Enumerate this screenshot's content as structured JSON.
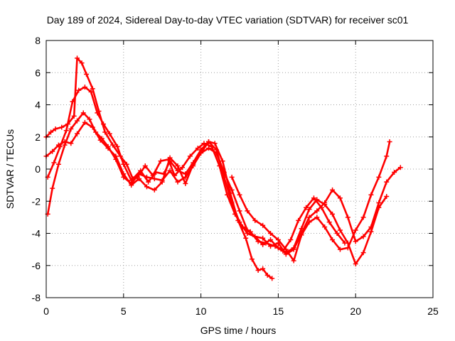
{
  "chart_data": {
    "type": "scatter",
    "title": "Day 189 of 2024, Sidereal Day-to-day VTEC variation (SDTVAR) for receiver sc01",
    "xlabel": "GPS time / hours",
    "ylabel": "SDTVAR / TECUs",
    "xlim": [
      0,
      25
    ],
    "ylim": [
      -8,
      8
    ],
    "xticks": [
      "0",
      "5",
      "10",
      "15",
      "20",
      "25"
    ],
    "yticks": [
      "8",
      "6",
      "4",
      "2",
      "0",
      "-2",
      "-4",
      "-6",
      "-8"
    ],
    "grid": true,
    "marker": "plus",
    "color": "#ff0000",
    "series": [
      {
        "x": [
          0.0,
          0.3,
          0.6,
          1.0,
          1.4,
          1.8,
          2.0,
          2.3,
          2.6,
          3.0,
          3.4,
          3.8,
          4.3,
          4.8,
          5.2,
          5.6,
          6.1,
          6.6,
          7.1,
          7.6,
          8.0,
          8.5,
          9.0,
          9.5,
          10.0,
          10.5,
          10.9,
          11.4,
          11.9,
          12.4,
          12.9,
          13.3,
          13.7,
          14.0,
          14.3,
          14.6
        ],
        "y": [
          2.0,
          2.3,
          2.5,
          2.6,
          2.8,
          3.3,
          6.9,
          6.6,
          5.9,
          5.0,
          3.6,
          2.3,
          1.5,
          0.8,
          0.3,
          -0.6,
          -0.1,
          -0.8,
          -0.2,
          -0.3,
          0.5,
          -0.1,
          -0.3,
          0.4,
          1.2,
          1.7,
          1.6,
          0.5,
          -1.5,
          -3.2,
          -4.3,
          -5.6,
          -6.3,
          -6.2,
          -6.6,
          -6.8
        ]
      },
      {
        "x": [
          0.1,
          0.5,
          0.9,
          1.3,
          1.7,
          2.1,
          2.5,
          2.9,
          3.3,
          3.7,
          4.1,
          4.6,
          5.0,
          5.5,
          5.9,
          6.4,
          6.9,
          7.4,
          7.9,
          8.3,
          8.8,
          9.3,
          9.8,
          10.2,
          10.7,
          11.2,
          11.7,
          12.2,
          12.7,
          13.2,
          13.7,
          14.2,
          14.8,
          15.3,
          15.8,
          16.3,
          16.8,
          17.3,
          17.8,
          18.3,
          18.8,
          19.3
        ],
        "y": [
          -0.5,
          0.4,
          1.4,
          2.4,
          4.2,
          4.9,
          5.1,
          4.8,
          3.5,
          2.8,
          2.2,
          1.4,
          0.3,
          -0.7,
          -0.5,
          0.2,
          -0.4,
          0.5,
          0.6,
          -0.4,
          0.1,
          0.8,
          1.3,
          1.6,
          1.4,
          0.2,
          -1.6,
          -2.8,
          -3.6,
          -3.9,
          -4.5,
          -4.6,
          -4.8,
          -5.1,
          -4.4,
          -3.2,
          -2.4,
          -1.8,
          -2.4,
          -3.3,
          -4.0,
          -4.6
        ]
      },
      {
        "x": [
          0.1,
          0.4,
          0.8,
          1.2,
          1.6,
          2.0,
          2.4,
          2.8,
          3.2,
          3.6,
          4.0,
          4.5,
          5.0,
          5.5,
          6.0,
          6.5,
          7.0,
          7.5,
          8.0,
          8.5,
          9.0,
          9.5,
          10.0,
          10.5,
          11.0,
          11.5,
          12.0,
          12.5,
          13.0,
          13.5,
          14.0,
          14.5,
          15.0,
          15.5,
          16.0,
          16.5,
          17.0,
          17.5,
          18.0,
          18.5,
          19.0,
          19.5,
          20.0,
          20.5,
          21.0,
          21.5,
          22.0
        ],
        "y": [
          -2.8,
          -1.2,
          0.3,
          1.5,
          2.5,
          3.0,
          3.5,
          3.1,
          2.3,
          1.9,
          1.4,
          0.6,
          -0.5,
          -0.9,
          -0.3,
          -0.5,
          -0.6,
          -0.7,
          -0.1,
          -0.8,
          -0.5,
          0.2,
          1.0,
          1.7,
          1.2,
          -0.5,
          -2.1,
          -3.3,
          -4.0,
          -4.2,
          -4.7,
          -4.4,
          -4.9,
          -5.2,
          -4.9,
          -3.7,
          -2.5,
          -1.9,
          -2.2,
          -2.8,
          -3.8,
          -4.6,
          -5.9,
          -5.2,
          -3.9,
          -2.4,
          -1.7
        ]
      },
      {
        "x": [
          0.0,
          0.4,
          0.8,
          1.2,
          1.6,
          2.0,
          2.5,
          3.0,
          3.5,
          4.0,
          4.5,
          5.0,
          5.5,
          6.0,
          6.5,
          7.0,
          7.5,
          8.0,
          8.5,
          9.0,
          9.5,
          10.0,
          10.5,
          11.0,
          11.5,
          12.0,
          12.5,
          13.0,
          13.5,
          14.0,
          14.5,
          15.0,
          15.5,
          16.0,
          16.5,
          17.0,
          17.5,
          18.0,
          18.5,
          19.0,
          19.5,
          20.0,
          20.5,
          21.0,
          21.5,
          22.0,
          22.5,
          22.9
        ],
        "y": [
          0.8,
          1.1,
          1.5,
          1.7,
          1.6,
          2.2,
          2.9,
          2.6,
          1.8,
          1.3,
          0.8,
          -0.3,
          -1.0,
          -0.6,
          -1.1,
          -1.3,
          -0.8,
          0.7,
          0.2,
          -0.9,
          0.3,
          1.0,
          1.3,
          1.0,
          -0.2,
          -1.3,
          -2.6,
          -3.8,
          -4.2,
          -4.3,
          -4.8,
          -4.6,
          -5.3,
          -5.0,
          -4.0,
          -3.0,
          -2.6,
          -2.1,
          -1.3,
          -1.8,
          -3.0,
          -4.5,
          -4.2,
          -3.6,
          -2.1,
          -0.8,
          -0.2,
          0.1
        ]
      },
      {
        "x": [
          12.0,
          12.5,
          13.0,
          13.5,
          14.0,
          14.5,
          15.0,
          15.5,
          16.0,
          16.5,
          17.0,
          17.5,
          18.0,
          18.5,
          19.0,
          19.5,
          20.0,
          20.5,
          21.0,
          21.5,
          22.0,
          22.2
        ],
        "y": [
          -0.5,
          -1.6,
          -2.6,
          -3.2,
          -3.5,
          -4.0,
          -4.4,
          -5.0,
          -5.7,
          -4.1,
          -3.3,
          -3.0,
          -3.6,
          -4.4,
          -5.0,
          -4.9,
          -3.8,
          -3.0,
          -1.6,
          -0.5,
          0.8,
          1.7
        ]
      }
    ]
  }
}
